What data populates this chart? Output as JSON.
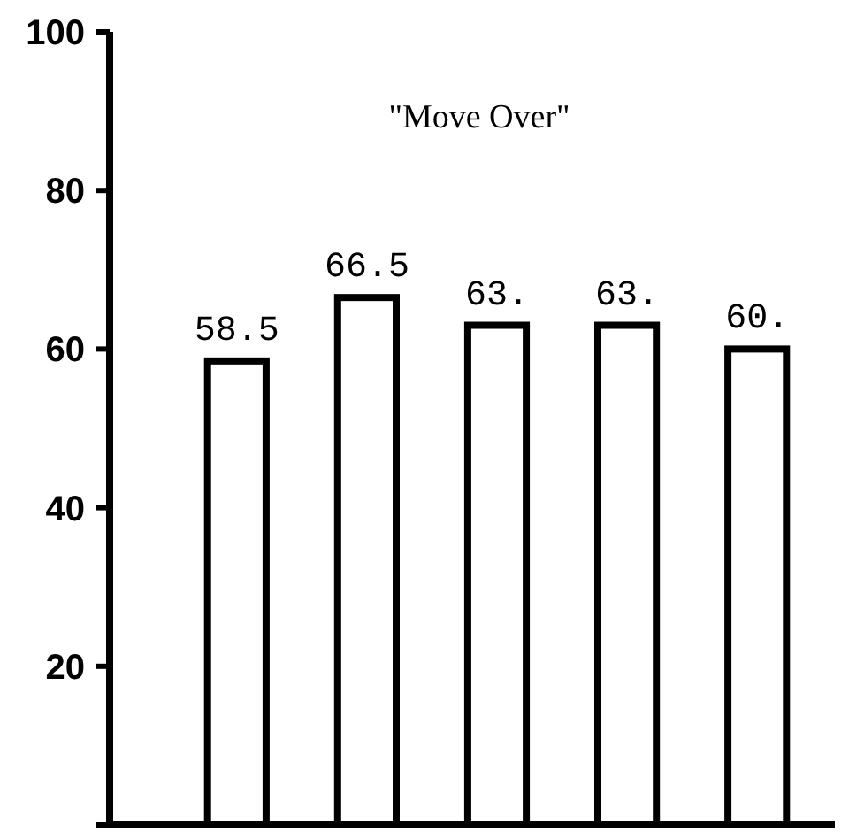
{
  "chart_data": {
    "type": "bar",
    "title": "\"Move Over\"",
    "categories": [
      null,
      null,
      null,
      null,
      null
    ],
    "values": [
      58.5,
      66.5,
      63,
      63,
      60
    ],
    "value_labels": [
      "58.5",
      "66.5",
      "63.",
      "63.",
      "60."
    ],
    "color": "#ffffff",
    "ylim": [
      0,
      100
    ],
    "yticks": [
      {
        "value": 0,
        "label": null
      },
      20,
      40,
      60,
      80,
      100
    ],
    "grid": false
  }
}
